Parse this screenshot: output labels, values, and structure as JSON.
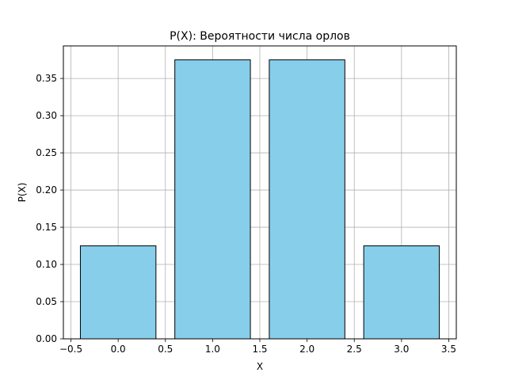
{
  "chart_data": {
    "type": "bar",
    "title": "P(X): Вероятности числа орлов",
    "xlabel": "X",
    "ylabel": "P(X)",
    "x": [
      0,
      1,
      2,
      3
    ],
    "values": [
      0.125,
      0.375,
      0.375,
      0.125
    ],
    "bar_width": 0.8,
    "xlim": [
      -0.58,
      3.58
    ],
    "ylim": [
      0,
      0.39375
    ],
    "xticks": [
      -0.5,
      0.0,
      0.5,
      1.0,
      1.5,
      2.0,
      2.5,
      3.0,
      3.5
    ],
    "xtick_labels": [
      "−0.5",
      "0.0",
      "0.5",
      "1.0",
      "1.5",
      "2.0",
      "2.5",
      "3.0",
      "3.5"
    ],
    "yticks": [
      0.0,
      0.05,
      0.1,
      0.15,
      0.2,
      0.25,
      0.3,
      0.35
    ],
    "ytick_labels": [
      "0.00",
      "0.05",
      "0.10",
      "0.15",
      "0.20",
      "0.25",
      "0.30",
      "0.35"
    ],
    "grid": true,
    "colors": {
      "bar_fill": "#87ceeb",
      "bar_edge": "#000000",
      "grid": "#b0b0b0"
    }
  }
}
